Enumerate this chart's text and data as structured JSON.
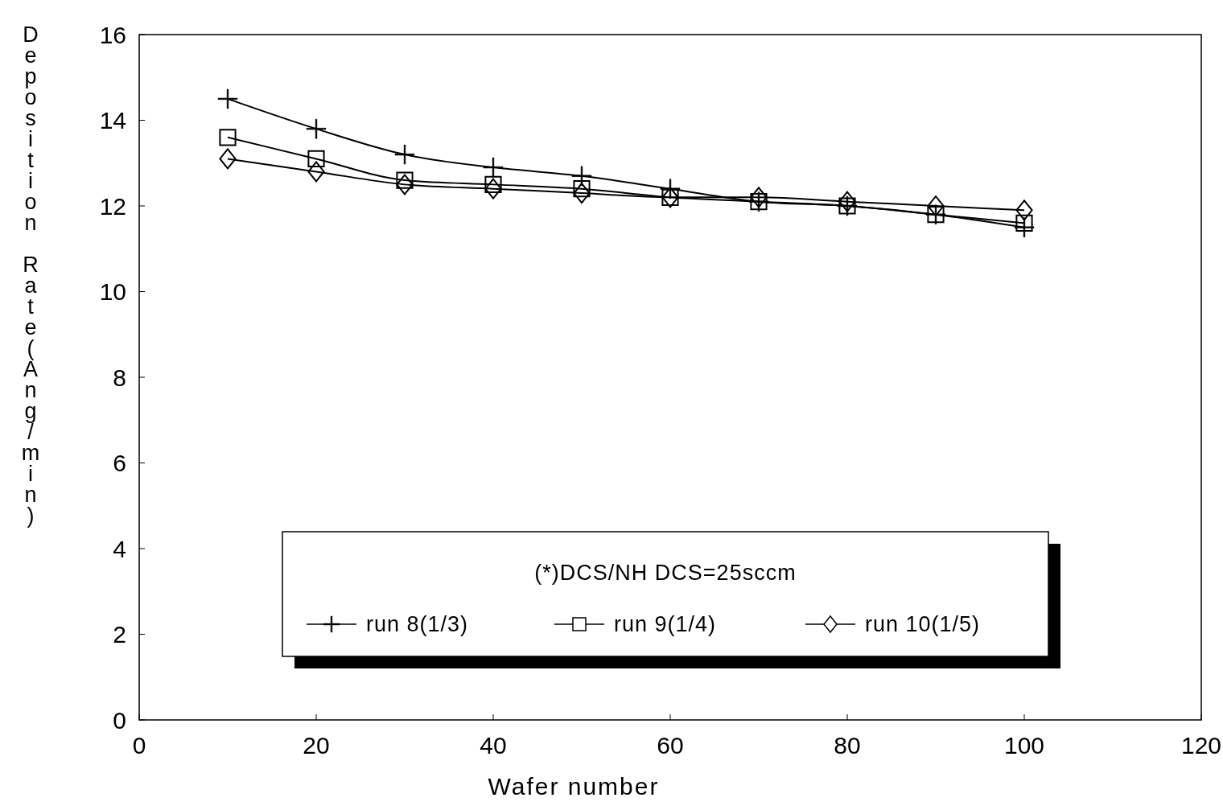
{
  "chart_data": {
    "type": "line",
    "xlabel": "Wafer number",
    "ylabel": "Deposition Rate(Ang/min)",
    "legend_title": "(*)DCS/NH DCS=25sccm",
    "x": [
      10,
      20,
      30,
      40,
      50,
      60,
      70,
      80,
      90,
      100
    ],
    "series": [
      {
        "name": "run 8(1/3)",
        "color": "#000000",
        "marker": "cross",
        "values": [
          14.5,
          13.8,
          13.2,
          12.9,
          12.7,
          12.4,
          12.1,
          12.0,
          11.8,
          11.5
        ]
      },
      {
        "name": "run 9(1/4)",
        "color": "#000000",
        "marker": "square",
        "values": [
          13.6,
          13.1,
          12.6,
          12.5,
          12.4,
          12.2,
          12.1,
          12.0,
          11.8,
          11.6
        ]
      },
      {
        "name": "run 10(1/5)",
        "color": "#000000",
        "marker": "diamond",
        "values": [
          13.1,
          12.8,
          12.5,
          12.4,
          12.3,
          12.2,
          12.2,
          12.1,
          12.0,
          11.9
        ]
      }
    ],
    "xlim": [
      0,
      120
    ],
    "xticks": [
      0,
      20,
      40,
      60,
      80,
      100,
      120
    ],
    "ylim": [
      0,
      16
    ],
    "yticks": [
      0,
      2,
      4,
      6,
      8,
      10,
      12,
      14,
      16
    ],
    "grid": false,
    "legend": "bottom",
    "line_style": "solid"
  }
}
